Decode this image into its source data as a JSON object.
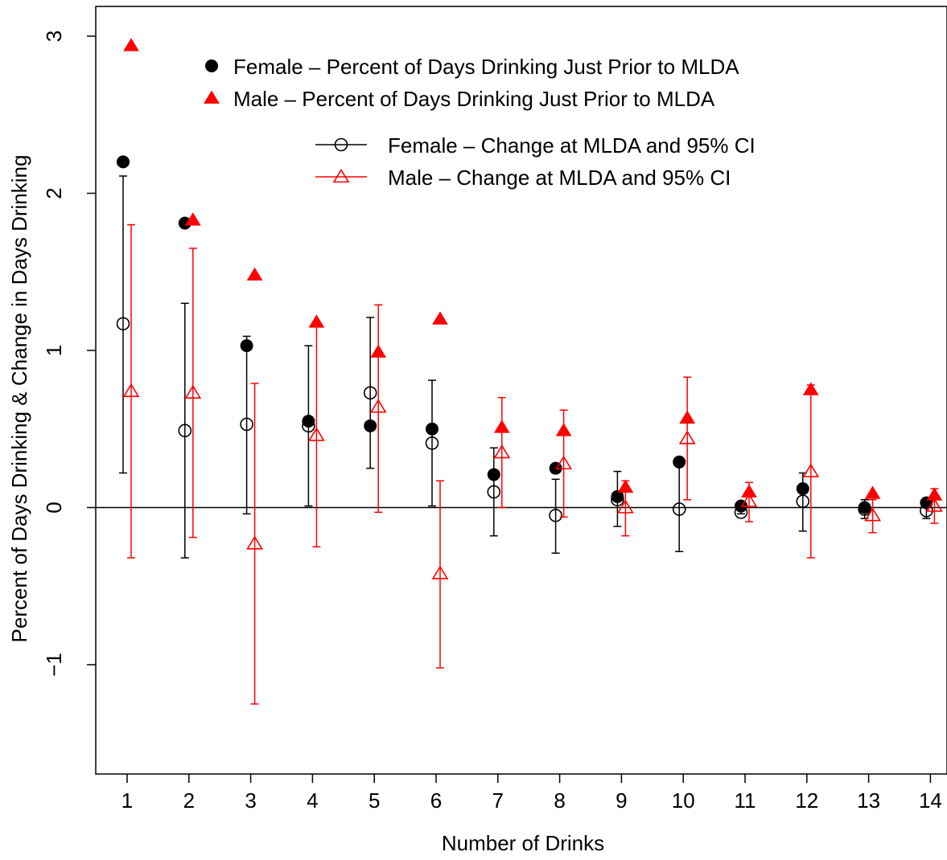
{
  "chart_data": {
    "type": "scatter",
    "xlabel": "Number of Drinks",
    "ylabel": "Percent of Days Drinking & Change in Days Drinking",
    "x_ticks": [
      "1",
      "2",
      "3",
      "4",
      "5",
      "6",
      "7",
      "8",
      "9",
      "10",
      "11",
      "12",
      "13",
      "14"
    ],
    "y_ticks": [
      -1,
      0,
      1,
      2,
      3
    ],
    "ylim": [
      -1.68,
      3.18
    ],
    "reference_line_y": 0,
    "grid": false,
    "legend_top": {
      "position": "top",
      "entries": [
        "Female – Percent of Days Drinking Just Prior to MLDA",
        "Male – Percent of Days Drinking Just Prior to MLDA"
      ]
    },
    "legend_bottom": {
      "position": "top-right",
      "entries": [
        "Female – Change at MLDA and 95% CI",
        "Male – Change at MLDA and 95% CI"
      ]
    },
    "series": [
      {
        "key": "female_pct",
        "color": "#000000",
        "marker": "filled-circle",
        "values": [
          2.2,
          1.81,
          1.03,
          0.55,
          0.52,
          0.5,
          0.21,
          0.25,
          0.07,
          0.29,
          0.01,
          0.12,
          0.0,
          0.03
        ]
      },
      {
        "key": "male_pct",
        "color": "#ff0000",
        "marker": "filled-triangle",
        "values": [
          2.94,
          1.83,
          1.48,
          1.18,
          0.99,
          1.2,
          0.51,
          0.49,
          0.13,
          0.57,
          0.1,
          0.75,
          0.09,
          0.08
        ]
      },
      {
        "key": "female_change",
        "color": "#000000",
        "marker": "open-circle",
        "values": [
          1.17,
          0.49,
          0.53,
          0.52,
          0.73,
          0.41,
          0.1,
          -0.05,
          0.05,
          -0.01,
          -0.03,
          0.04,
          -0.01,
          -0.02
        ],
        "ci_low": [
          0.22,
          -0.32,
          -0.04,
          0.01,
          0.25,
          0.01,
          -0.18,
          -0.29,
          -0.12,
          -0.28,
          -0.04,
          -0.15,
          -0.07,
          -0.07
        ],
        "ci_high": [
          2.11,
          1.3,
          1.09,
          1.03,
          1.21,
          0.81,
          0.38,
          0.18,
          0.23,
          0.27,
          -0.02,
          0.22,
          0.05,
          0.03
        ]
      },
      {
        "key": "male_change",
        "color": "#ff0000",
        "marker": "open-triangle",
        "values": [
          0.74,
          0.73,
          -0.23,
          0.46,
          0.64,
          -0.42,
          0.35,
          0.28,
          0.0,
          0.44,
          0.04,
          0.23,
          -0.05,
          0.01
        ],
        "ci_low": [
          -0.32,
          -0.19,
          -1.25,
          -0.25,
          -0.03,
          -1.02,
          0.0,
          -0.06,
          -0.18,
          0.05,
          -0.09,
          -0.32,
          -0.16,
          -0.1
        ],
        "ci_high": [
          1.8,
          1.65,
          0.79,
          1.17,
          1.29,
          0.17,
          0.7,
          0.62,
          0.17,
          0.83,
          0.16,
          0.78,
          0.05,
          0.12
        ]
      }
    ]
  }
}
